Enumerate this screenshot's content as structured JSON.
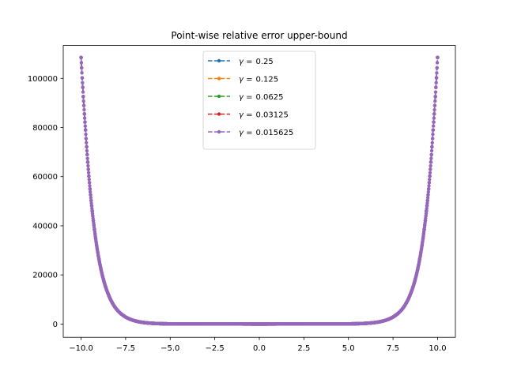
{
  "chart_data": {
    "type": "line",
    "title": "Point-wise relative error upper-bound",
    "xlabel": "",
    "ylabel": "",
    "xlim": [
      -11.0,
      11.0
    ],
    "ylim": [
      -5400,
      113400
    ],
    "xticks": [
      -10.0,
      -7.5,
      -5.0,
      -2.5,
      0.0,
      2.5,
      5.0,
      7.5,
      10.0
    ],
    "xtick_labels": [
      "−10.0",
      "−7.5",
      "−5.0",
      "−2.5",
      "0.0",
      "2.5",
      "5.0",
      "7.5",
      "10.0"
    ],
    "yticks": [
      0,
      20000,
      40000,
      60000,
      80000,
      100000
    ],
    "ytick_labels": [
      "0",
      "20000",
      "40000",
      "60000",
      "80000",
      "100000"
    ],
    "legend_position": "top-center",
    "grid": false,
    "x_range": [
      -10,
      10
    ],
    "curve": {
      "description_units": "y values",
      "sample_points": [
        [
          0.0,
          0
        ],
        [
          5.0,
          65
        ],
        [
          6.0,
          300
        ],
        [
          7.0,
          1350
        ],
        [
          7.5,
          2850
        ],
        [
          8.0,
          5950
        ],
        [
          8.5,
          12600
        ],
        [
          9.0,
          26500
        ],
        [
          9.25,
          38500
        ],
        [
          9.5,
          55000
        ],
        [
          9.75,
          79000
        ],
        [
          10.0,
          108500
        ]
      ],
      "symmetric": true
    },
    "series": [
      {
        "name": "0.25",
        "color": "#1f77b4",
        "step": 0.25
      },
      {
        "name": "0.125",
        "color": "#ff7f0e",
        "step": 0.125
      },
      {
        "name": "0.0625",
        "color": "#2ca02c",
        "step": 0.0625
      },
      {
        "name": "0.03125",
        "color": "#d62728",
        "step": 0.03125
      },
      {
        "name": "0.015625",
        "color": "#9467bd",
        "step": 0.015625
      }
    ],
    "legend_symbol": "γ ="
  }
}
